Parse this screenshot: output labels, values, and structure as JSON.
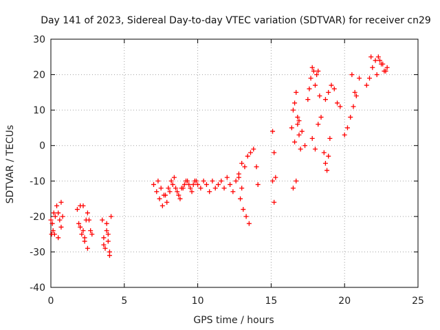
{
  "chart_data": {
    "type": "scatter",
    "title": "Day 141 of 2023, Sidereal Day-to-day VTEC variation (SDTVAR) for receiver cn29",
    "xlabel": "GPS time / hours",
    "ylabel": "SDTVAR / TECUs",
    "xlim": [
      0,
      25
    ],
    "ylim": [
      -40,
      30
    ],
    "xticks": [
      "0",
      "5",
      "10",
      "15",
      "20",
      "25"
    ],
    "yticks": [
      "-40",
      "-30",
      "-20",
      "-10",
      "0",
      "10",
      "20",
      "30"
    ],
    "grid": true,
    "marker": "+",
    "color": "#ff0000",
    "series": [
      {
        "name": "SDTVAR",
        "x": [
          0.0,
          0.1,
          0.2,
          0.3,
          0.05,
          0.15,
          0.25,
          0.4,
          0.5,
          0.6,
          0.7,
          0.8,
          0.5,
          0.7,
          1.8,
          1.9,
          2.0,
          2.1,
          2.2,
          2.3,
          2.4,
          2.5,
          2.6,
          2.7,
          2.2,
          2.3,
          2.5,
          2.8,
          2.0,
          3.5,
          3.6,
          3.7,
          3.8,
          3.9,
          4.0,
          4.1,
          3.9,
          4.0,
          3.6,
          3.8,
          7.0,
          7.2,
          7.4,
          7.6,
          7.8,
          8.0,
          8.2,
          8.4,
          8.6,
          8.8,
          9.0,
          9.2,
          9.4,
          9.6,
          9.8,
          10.0,
          10.2,
          10.4,
          10.6,
          10.8,
          11.0,
          11.2,
          11.4,
          11.6,
          11.8,
          12.0,
          12.2,
          12.4,
          12.6,
          12.8,
          13.0,
          7.3,
          7.5,
          7.7,
          7.9,
          8.1,
          8.3,
          8.5,
          8.7,
          8.9,
          9.1,
          9.3,
          9.5,
          9.7,
          9.9,
          12.8,
          13.0,
          13.2,
          13.4,
          13.6,
          13.8,
          12.9,
          13.1,
          13.3,
          13.5,
          14.0,
          14.1,
          15.1,
          15.2,
          15.3,
          15.1,
          15.2,
          16.4,
          16.5,
          16.6,
          16.7,
          16.8,
          16.9,
          17.0,
          16.5,
          16.7,
          16.9,
          17.1,
          17.3,
          16.6,
          16.8,
          17.5,
          17.6,
          17.7,
          17.8,
          17.9,
          18.0,
          18.1,
          18.2,
          18.3,
          17.8,
          18.0,
          18.2,
          18.4,
          18.6,
          18.7,
          18.8,
          18.9,
          19.0,
          18.7,
          18.9,
          19.1,
          19.3,
          19.5,
          19.7,
          20.0,
          20.2,
          20.4,
          20.6,
          20.8,
          21.0,
          20.5,
          20.7,
          21.5,
          21.7,
          21.9,
          22.1,
          22.3,
          22.5,
          22.7,
          22.9,
          22.2,
          22.4,
          22.6,
          22.8,
          21.8
        ],
        "y": [
          -21,
          -22,
          -19,
          -20,
          -25,
          -24,
          -25,
          -17,
          -19,
          -21,
          -16,
          -20,
          -26,
          -23,
          -18,
          -22,
          -23,
          -25,
          -24,
          -27,
          -21,
          -19,
          -21,
          -24,
          -17,
          -26,
          -29,
          -25,
          -17,
          -21,
          -26,
          -29,
          -22,
          -25,
          -30,
          -20,
          -27,
          -31,
          -28,
          -24,
          -11,
          -13,
          -15,
          -17,
          -14,
          -12,
          -10,
          -9,
          -13,
          -15,
          -12,
          -10,
          -11,
          -13,
          -10,
          -11,
          -12,
          -10,
          -11,
          -13,
          -10,
          -12,
          -11,
          -10,
          -12,
          -9,
          -11,
          -13,
          -10,
          -9,
          -12,
          -10,
          -12,
          -14,
          -16,
          -13,
          -11,
          -12,
          -14,
          -12,
          -11,
          -10,
          -12,
          -11,
          -10,
          -8,
          -5,
          -6,
          -3,
          -2,
          -1,
          -15,
          -18,
          -20,
          -22,
          -6,
          -11,
          4,
          -2,
          -9,
          -10,
          -16,
          5,
          10,
          12,
          15,
          8,
          3,
          -1,
          -12,
          -10,
          7,
          4,
          0,
          1,
          6,
          13,
          16,
          19,
          22,
          21,
          17,
          20,
          21,
          14,
          2,
          -1,
          6,
          8,
          -2,
          -5,
          -7,
          -3,
          2,
          13,
          15,
          17,
          16,
          12,
          11,
          3,
          5,
          8,
          11,
          14,
          19,
          20,
          15,
          17,
          19,
          22,
          24,
          25,
          23,
          21,
          22,
          20,
          24,
          23,
          21,
          25
        ]
      }
    ]
  }
}
